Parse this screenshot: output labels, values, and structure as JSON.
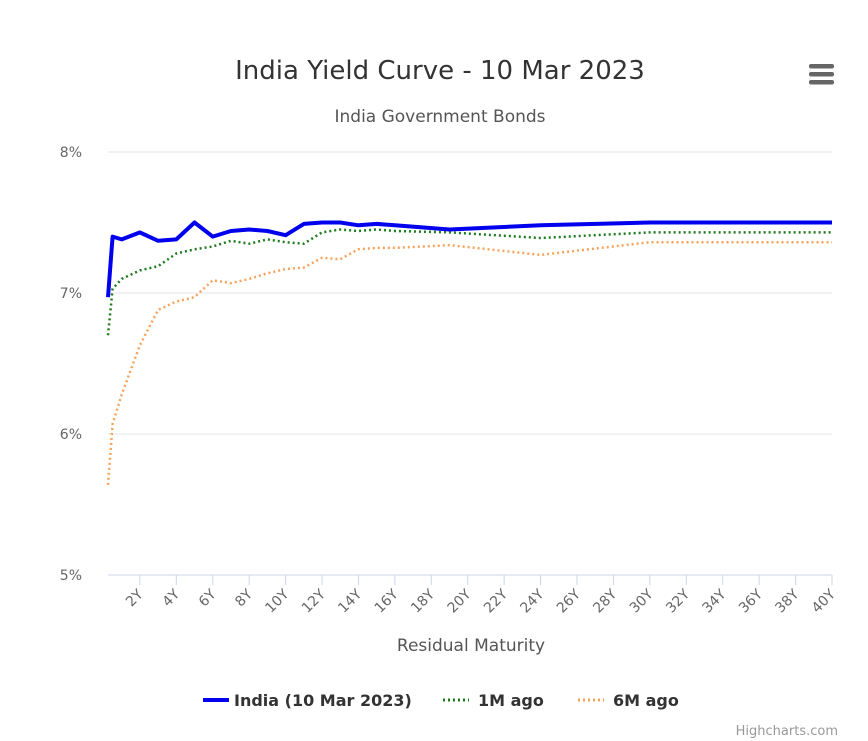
{
  "chart_data": {
    "type": "line",
    "title": "India Yield Curve - 10 Mar 2023",
    "subtitle": "India Government Bonds",
    "xlabel": "Residual Maturity",
    "ylabel": "",
    "ylim": [
      5,
      8
    ],
    "xlim": [
      0.25,
      40
    ],
    "y_ticks": [
      "5%",
      "6%",
      "7%",
      "8%"
    ],
    "y_tick_values": [
      5,
      6,
      7,
      8
    ],
    "x_ticks": [
      "2Y",
      "4Y",
      "6Y",
      "8Y",
      "10Y",
      "12Y",
      "14Y",
      "16Y",
      "18Y",
      "20Y",
      "22Y",
      "24Y",
      "26Y",
      "28Y",
      "30Y",
      "32Y",
      "34Y",
      "36Y",
      "38Y",
      "40Y"
    ],
    "x_tick_values": [
      2,
      4,
      6,
      8,
      10,
      12,
      14,
      16,
      18,
      20,
      22,
      24,
      26,
      28,
      30,
      32,
      34,
      36,
      38,
      40
    ],
    "grid": true,
    "legend_position": "bottom-center",
    "series": [
      {
        "name": "India (10 Mar 2023)",
        "color": "#0000ee",
        "style": "solid",
        "x": [
          0.25,
          0.5,
          1,
          2,
          3,
          4,
          5,
          6,
          7,
          8,
          9,
          10,
          11,
          12,
          13,
          14,
          15,
          16,
          19,
          24,
          30,
          40
        ],
        "y": [
          6.97,
          7.4,
          7.38,
          7.43,
          7.37,
          7.38,
          7.5,
          7.4,
          7.44,
          7.45,
          7.44,
          7.41,
          7.49,
          7.5,
          7.5,
          7.48,
          7.49,
          7.48,
          7.45,
          7.48,
          7.5,
          7.5
        ]
      },
      {
        "name": "1M ago",
        "color": "#1e7a1e",
        "style": "dotted",
        "x": [
          0.25,
          0.5,
          1,
          2,
          3,
          4,
          5,
          6,
          7,
          8,
          9,
          10,
          11,
          12,
          13,
          14,
          15,
          16,
          19,
          24,
          30,
          40
        ],
        "y": [
          6.7,
          7.03,
          7.1,
          7.16,
          7.19,
          7.28,
          7.31,
          7.33,
          7.37,
          7.35,
          7.38,
          7.36,
          7.35,
          7.43,
          7.45,
          7.44,
          7.45,
          7.44,
          7.43,
          7.39,
          7.43,
          7.43
        ]
      },
      {
        "name": "6M ago",
        "color": "#f7a35c",
        "style": "dotted",
        "x": [
          0.25,
          0.5,
          1,
          2,
          3,
          4,
          5,
          6,
          7,
          8,
          9,
          10,
          11,
          12,
          13,
          14,
          15,
          16,
          19,
          24,
          30,
          40
        ],
        "y": [
          5.64,
          6.07,
          6.28,
          6.63,
          6.88,
          6.94,
          6.97,
          7.09,
          7.07,
          7.1,
          7.14,
          7.17,
          7.18,
          7.25,
          7.24,
          7.31,
          7.32,
          7.32,
          7.34,
          7.27,
          7.36,
          7.36
        ]
      }
    ]
  },
  "credits": "Highcharts.com",
  "menu_icon": "hamburger-menu-icon"
}
